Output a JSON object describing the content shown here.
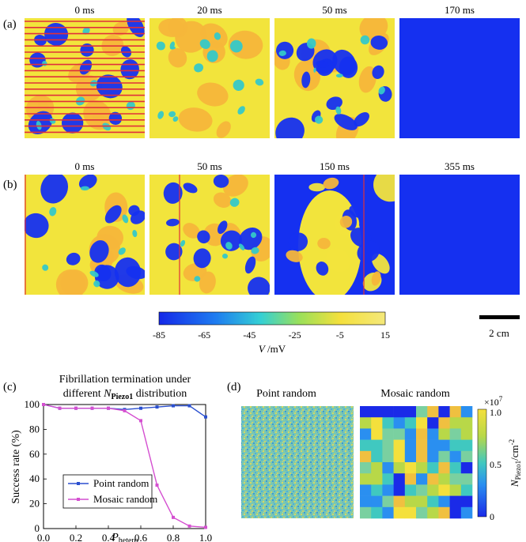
{
  "colors": {
    "blue": "#1530f0",
    "yellow": "#f2e43c",
    "orange": "#f5b63a",
    "cyan": "#35c8c8",
    "red_line": "#e0303a",
    "point_random": "#2a4fcf",
    "mosaic_random": "#d44fd0",
    "scalebar": "#000000"
  },
  "panel_a": {
    "label": "(a)",
    "frames": [
      {
        "time": "0 ms",
        "state": "spiral_with_lines"
      },
      {
        "time": "20 ms",
        "state": "mostly_excited"
      },
      {
        "time": "50 ms",
        "state": "mixed"
      },
      {
        "time": "170 ms",
        "state": "terminated"
      }
    ]
  },
  "panel_b": {
    "label": "(b)",
    "frames": [
      {
        "time": "0 ms",
        "state": "spiral"
      },
      {
        "time": "50 ms",
        "state": "spiral_with_line"
      },
      {
        "time": "150 ms",
        "state": "partly_excited_with_line"
      },
      {
        "time": "355 ms",
        "state": "terminated"
      }
    ]
  },
  "colorbar": {
    "ticks": [
      "-85",
      "-65",
      "-45",
      "-25",
      "-5",
      "15"
    ],
    "label_var": "V",
    "label_unit": " /mV"
  },
  "scalebar": {
    "label": "2 cm"
  },
  "panel_c": {
    "label": "(c)",
    "title_line1": "Fibrillation termination under",
    "title_line2_pre": "different ",
    "title_var": "N",
    "title_sub": "Piezo1",
    "title_line2_post": " distribution"
  },
  "panel_d": {
    "label": "(d)",
    "left_title": "Point random",
    "right_title": "Mosaic random",
    "cbar_exponent_base": "×10",
    "cbar_exponent_power": "7",
    "cbar_ticks": [
      "1.0",
      "0.5",
      "0"
    ],
    "cbar_label_var": "N",
    "cbar_label_sub": "Piezo1",
    "cbar_label_unit": "/cm",
    "cbar_label_power": "-2"
  },
  "chart_data": {
    "type": "line",
    "title": "Fibrillation termination under different N Piezo1 distribution",
    "xlabel": "P",
    "xlabel_sub": "hetero",
    "ylabel": "Success rate (%)",
    "xlim": [
      0,
      1.0
    ],
    "ylim": [
      0,
      100
    ],
    "xticks": [
      "0.0",
      "0.2",
      "0.4",
      "0.6",
      "0.8",
      "1.0"
    ],
    "yticks": [
      "0",
      "20",
      "40",
      "60",
      "80",
      "100"
    ],
    "x": [
      0.0,
      0.1,
      0.2,
      0.3,
      0.4,
      0.5,
      0.6,
      0.7,
      0.8,
      0.9,
      1.0
    ],
    "series": [
      {
        "name": "Point random",
        "color": "#2a4fcf",
        "values": [
          100,
          97,
          97,
          97,
          97,
          96,
          97,
          98,
          99,
          99,
          90
        ]
      },
      {
        "name": "Mosaic random",
        "color": "#d44fd0",
        "values": [
          100,
          97,
          97,
          97,
          97,
          95,
          87,
          35,
          9,
          2,
          1
        ]
      }
    ],
    "legend": "lower-left"
  }
}
